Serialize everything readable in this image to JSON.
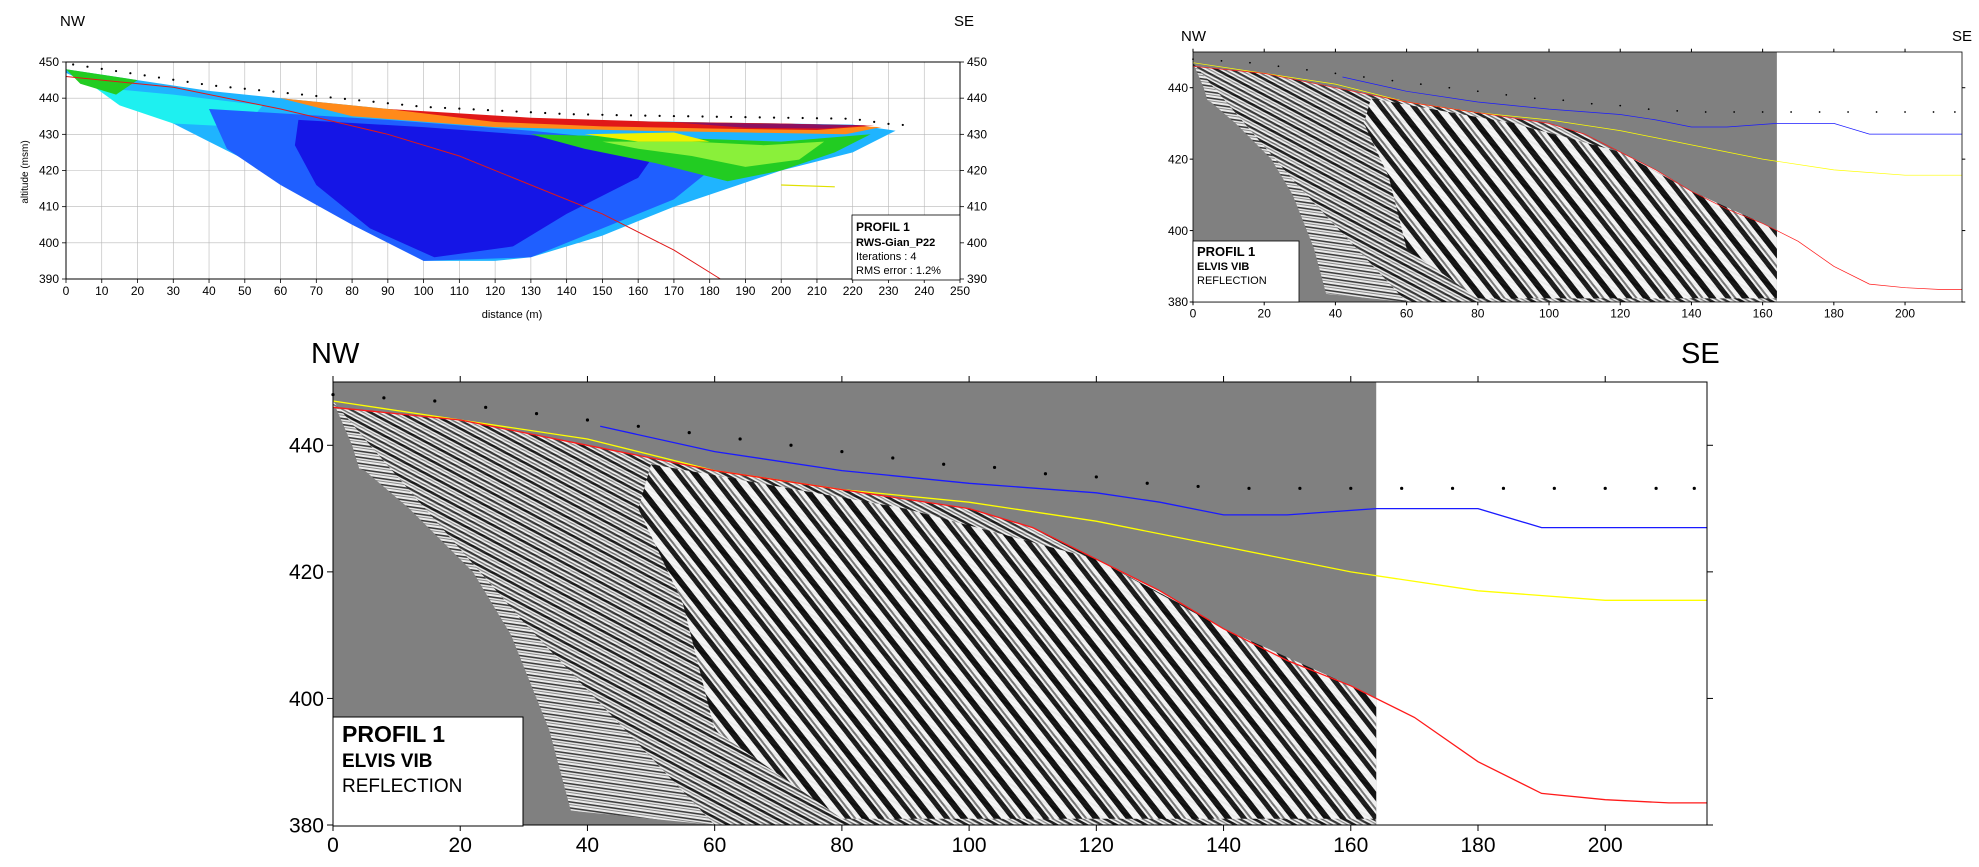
{
  "chart_data": [
    {
      "id": "ert",
      "type": "heatmap",
      "orientation": {
        "left": "NW",
        "right": "SE"
      },
      "xlabel": "distance (m)",
      "ylabel": "altitude (msm)",
      "xlim": [
        0,
        250
      ],
      "ylim": [
        390,
        450
      ],
      "xticks": [
        0,
        10,
        20,
        30,
        40,
        50,
        60,
        70,
        80,
        90,
        100,
        110,
        120,
        130,
        140,
        150,
        160,
        170,
        180,
        190,
        200,
        210,
        220,
        230,
        240,
        250
      ],
      "yticks": [
        390,
        400,
        410,
        420,
        430,
        440,
        450
      ],
      "grid": true,
      "legend_box": {
        "title": "PROFIL 1",
        "subtitle": "RWS-Gian_P22",
        "line1": "Iterations : 4",
        "line2": "RMS error : 1.2%"
      },
      "colors": {
        "deep_blue": "#1515e6",
        "blue": "#1f5fff",
        "light_blue": "#1fb4ff",
        "cyan": "#1ef0f0",
        "green": "#22cc22",
        "light_green": "#8af03a",
        "yellow": "#f0f000",
        "orange": "#ff8a1a",
        "red": "#e01818",
        "dark_red": "#8c1060"
      },
      "topography": [
        [
          0,
          448
        ],
        [
          20,
          445
        ],
        [
          40,
          442
        ],
        [
          60,
          440
        ],
        [
          80,
          438
        ],
        [
          100,
          436
        ],
        [
          120,
          435
        ],
        [
          140,
          434
        ],
        [
          160,
          433.6
        ],
        [
          180,
          433.3
        ],
        [
          200,
          433
        ],
        [
          220,
          432.7
        ],
        [
          232,
          431
        ]
      ],
      "red_line": [
        [
          0,
          446
        ],
        [
          30,
          443
        ],
        [
          60,
          437
        ],
        [
          90,
          430
        ],
        [
          110,
          424
        ],
        [
          130,
          416
        ],
        [
          150,
          408
        ],
        [
          170,
          398
        ],
        [
          183,
          390
        ]
      ],
      "yellow_line": [
        [
          215,
          415.5
        ]
      ]
    },
    {
      "id": "seis-small",
      "type": "line",
      "orientation": {
        "left": "NW",
        "right": "SE"
      },
      "xlim": [
        0,
        216
      ],
      "ylim": [
        380,
        450
      ],
      "xticks": [
        0,
        20,
        40,
        60,
        80,
        100,
        120,
        140,
        160,
        180,
        200
      ],
      "yticks": [
        380,
        400,
        420,
        440
      ],
      "legend_box": {
        "title": "PROFIL 1",
        "subtitle": "ELVIS VIB",
        "line1": "REFLECTION"
      }
    },
    {
      "id": "seis-large",
      "type": "line",
      "orientation": {
        "left": "NW",
        "right": "SE"
      },
      "xlim": [
        0,
        216
      ],
      "ylim": [
        380,
        450
      ],
      "xticks": [
        0,
        20,
        40,
        60,
        80,
        100,
        120,
        140,
        160,
        180,
        200
      ],
      "yticks": [
        380,
        400,
        420,
        440
      ],
      "legend_box": {
        "title": "PROFIL 1",
        "subtitle": "ELVIS VIB",
        "line1": "REFLECTION"
      },
      "data_extent_x": 164,
      "colors": {
        "blue": "#1a1aff",
        "yellow": "#ffff00",
        "red": "#ff1a1a",
        "section_bg": "#808080"
      },
      "series": [
        {
          "color": "#1a1aff",
          "x": [
            42,
            60,
            80,
            100,
            120,
            130,
            140,
            150,
            164,
            180,
            190,
            200,
            210,
            216
          ],
          "y": [
            443,
            439,
            436,
            434,
            432.5,
            431,
            429,
            429,
            430,
            430,
            427,
            427,
            427,
            427
          ]
        },
        {
          "color": "#ffff00",
          "x": [
            0,
            20,
            40,
            60,
            80,
            100,
            120,
            140,
            160,
            180,
            200,
            216
          ],
          "y": [
            447,
            444,
            441,
            436,
            433,
            431,
            428,
            424,
            420,
            417,
            415.5,
            415.5
          ]
        },
        {
          "color": "#ff1a1a",
          "x": [
            0,
            20,
            40,
            60,
            80,
            100,
            110,
            120,
            130,
            140,
            150,
            160,
            170,
            180,
            190,
            200,
            210,
            216
          ],
          "y": [
            446,
            444,
            440,
            436,
            433,
            430,
            427,
            422,
            417,
            411,
            406,
            402,
            397,
            390,
            385,
            384,
            383.5,
            383.5
          ]
        }
      ],
      "topography_markers": {
        "x": [
          0,
          8,
          16,
          24,
          32,
          40,
          48,
          56,
          64,
          72,
          80,
          88,
          96,
          104,
          112,
          120,
          128,
          136,
          144,
          152,
          160,
          168,
          176,
          184,
          192,
          200,
          208,
          214
        ],
        "y": [
          448,
          447.5,
          447,
          446,
          445,
          444,
          443,
          442,
          441,
          440,
          439,
          438,
          437,
          436.5,
          435.5,
          435,
          434,
          433.5,
          433.2,
          433.2,
          433.2,
          433.2,
          433.2,
          433.2,
          433.2,
          433.2,
          433.2,
          433.2
        ]
      }
    }
  ]
}
